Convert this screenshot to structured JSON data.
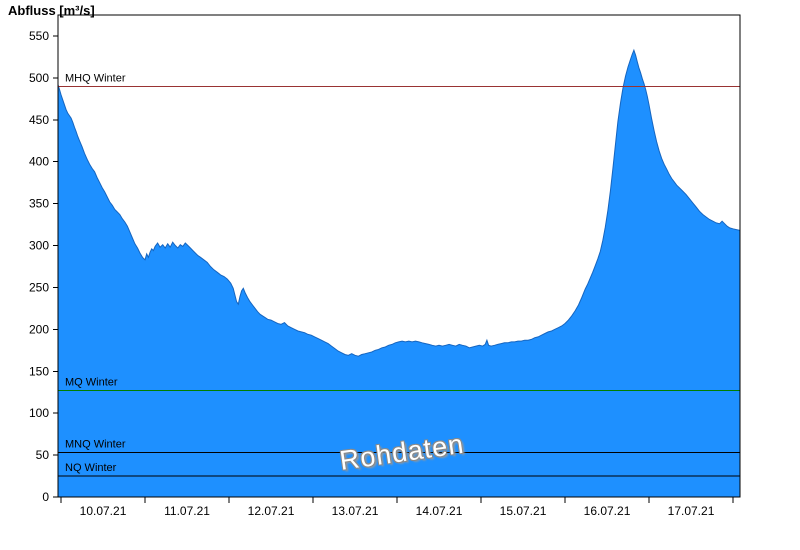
{
  "title": "Abfluss [m³/s]",
  "watermark": "Rohdaten",
  "chart_data": {
    "type": "area",
    "series_name": "Abfluss",
    "unit": "m³/s",
    "fill_color": "#1e90ff",
    "stroke_color": "#1565c0",
    "axis_color": "#000000",
    "x_unit": "day_of_july_2021",
    "x_range": [
      9.964,
      18.083
    ],
    "y_range": [
      0,
      575
    ],
    "y_ticks": [
      0,
      50,
      100,
      150,
      200,
      250,
      300,
      350,
      400,
      450,
      500,
      550
    ],
    "x_boundaries": [
      10,
      11,
      12,
      13,
      14,
      15,
      16,
      17,
      18
    ],
    "x_labels": [
      {
        "day": 10.5,
        "text": "10.07.21"
      },
      {
        "day": 11.5,
        "text": "11.07.21"
      },
      {
        "day": 12.5,
        "text": "12.07.21"
      },
      {
        "day": 13.5,
        "text": "13.07.21"
      },
      {
        "day": 14.5,
        "text": "14.07.21"
      },
      {
        "day": 15.5,
        "text": "15.07.21"
      },
      {
        "day": 16.5,
        "text": "16.07.21"
      },
      {
        "day": 17.5,
        "text": "17.07.21"
      }
    ],
    "reference_lines": [
      {
        "label": "MHQ Winter",
        "value": 490,
        "color": "#993333"
      },
      {
        "label": "MQ Winter",
        "value": 127,
        "color": "#007f00"
      },
      {
        "label": "MNQ Winter",
        "value": 53,
        "color": "#000000"
      },
      {
        "label": "NQ Winter",
        "value": 25,
        "color": "#000000"
      }
    ],
    "points": [
      [
        9.964,
        492
      ],
      [
        9.98,
        487
      ],
      [
        10.0,
        480
      ],
      [
        10.02,
        474
      ],
      [
        10.04,
        468
      ],
      [
        10.06,
        462
      ],
      [
        10.08,
        458
      ],
      [
        10.1,
        455
      ],
      [
        10.12,
        452
      ],
      [
        10.14,
        447
      ],
      [
        10.16,
        441
      ],
      [
        10.18,
        436
      ],
      [
        10.2,
        430
      ],
      [
        10.22,
        425
      ],
      [
        10.25,
        418
      ],
      [
        10.28,
        410
      ],
      [
        10.31,
        403
      ],
      [
        10.34,
        397
      ],
      [
        10.37,
        392
      ],
      [
        10.4,
        388
      ],
      [
        10.43,
        381
      ],
      [
        10.46,
        375
      ],
      [
        10.49,
        369
      ],
      [
        10.52,
        364
      ],
      [
        10.55,
        358
      ],
      [
        10.58,
        352
      ],
      [
        10.61,
        348
      ],
      [
        10.64,
        343
      ],
      [
        10.67,
        340
      ],
      [
        10.7,
        337
      ],
      [
        10.73,
        332
      ],
      [
        10.76,
        328
      ],
      [
        10.79,
        323
      ],
      [
        10.82,
        316
      ],
      [
        10.85,
        309
      ],
      [
        10.88,
        302
      ],
      [
        10.91,
        297
      ],
      [
        10.94,
        291
      ],
      [
        10.97,
        286
      ],
      [
        11.0,
        283
      ],
      [
        11.02,
        290
      ],
      [
        11.04,
        286
      ],
      [
        11.06,
        292
      ],
      [
        11.08,
        296
      ],
      [
        11.1,
        294
      ],
      [
        11.12,
        299
      ],
      [
        11.15,
        303
      ],
      [
        11.18,
        298
      ],
      [
        11.21,
        301
      ],
      [
        11.24,
        297
      ],
      [
        11.27,
        302
      ],
      [
        11.3,
        298
      ],
      [
        11.33,
        304
      ],
      [
        11.36,
        300
      ],
      [
        11.39,
        297
      ],
      [
        11.42,
        301
      ],
      [
        11.45,
        299
      ],
      [
        11.48,
        303
      ],
      [
        11.51,
        300
      ],
      [
        11.54,
        297
      ],
      [
        11.57,
        294
      ],
      [
        11.6,
        291
      ],
      [
        11.63,
        288
      ],
      [
        11.66,
        286
      ],
      [
        11.7,
        283
      ],
      [
        11.74,
        280
      ],
      [
        11.78,
        275
      ],
      [
        11.82,
        271
      ],
      [
        11.86,
        268
      ],
      [
        11.9,
        265
      ],
      [
        11.94,
        263
      ],
      [
        11.98,
        260
      ],
      [
        12.02,
        255
      ],
      [
        12.05,
        249
      ],
      [
        12.07,
        241
      ],
      [
        12.09,
        233
      ],
      [
        12.11,
        230
      ],
      [
        12.13,
        239
      ],
      [
        12.15,
        246
      ],
      [
        12.17,
        249
      ],
      [
        12.19,
        244
      ],
      [
        12.22,
        238
      ],
      [
        12.25,
        233
      ],
      [
        12.28,
        229
      ],
      [
        12.31,
        225
      ],
      [
        12.34,
        221
      ],
      [
        12.37,
        218
      ],
      [
        12.4,
        216
      ],
      [
        12.43,
        214
      ],
      [
        12.46,
        212
      ],
      [
        12.5,
        211
      ],
      [
        12.54,
        209
      ],
      [
        12.58,
        207
      ],
      [
        12.62,
        206
      ],
      [
        12.66,
        208
      ],
      [
        12.7,
        204
      ],
      [
        12.74,
        202
      ],
      [
        12.78,
        200
      ],
      [
        12.82,
        198
      ],
      [
        12.86,
        197
      ],
      [
        12.9,
        196
      ],
      [
        12.94,
        194
      ],
      [
        12.98,
        193
      ],
      [
        13.02,
        191
      ],
      [
        13.06,
        189
      ],
      [
        13.1,
        187
      ],
      [
        13.14,
        185
      ],
      [
        13.18,
        183
      ],
      [
        13.22,
        180
      ],
      [
        13.26,
        177
      ],
      [
        13.3,
        174
      ],
      [
        13.34,
        172
      ],
      [
        13.38,
        170
      ],
      [
        13.42,
        169
      ],
      [
        13.46,
        171
      ],
      [
        13.5,
        169
      ],
      [
        13.54,
        168
      ],
      [
        13.58,
        170
      ],
      [
        13.62,
        171
      ],
      [
        13.66,
        172
      ],
      [
        13.7,
        173
      ],
      [
        13.74,
        175
      ],
      [
        13.78,
        176
      ],
      [
        13.82,
        178
      ],
      [
        13.86,
        179
      ],
      [
        13.9,
        181
      ],
      [
        13.94,
        182
      ],
      [
        13.98,
        184
      ],
      [
        14.02,
        185
      ],
      [
        14.06,
        186
      ],
      [
        14.1,
        185
      ],
      [
        14.14,
        186
      ],
      [
        14.18,
        185
      ],
      [
        14.22,
        186
      ],
      [
        14.26,
        185
      ],
      [
        14.3,
        184
      ],
      [
        14.34,
        183
      ],
      [
        14.38,
        182
      ],
      [
        14.42,
        181
      ],
      [
        14.46,
        180
      ],
      [
        14.5,
        181
      ],
      [
        14.54,
        180
      ],
      [
        14.58,
        181
      ],
      [
        14.62,
        182
      ],
      [
        14.66,
        181
      ],
      [
        14.7,
        180
      ],
      [
        14.74,
        182
      ],
      [
        14.78,
        181
      ],
      [
        14.82,
        180
      ],
      [
        14.86,
        178
      ],
      [
        14.9,
        179
      ],
      [
        14.94,
        180
      ],
      [
        14.98,
        181
      ],
      [
        15.02,
        180
      ],
      [
        15.05,
        182
      ],
      [
        15.07,
        187
      ],
      [
        15.09,
        181
      ],
      [
        15.12,
        180
      ],
      [
        15.16,
        181
      ],
      [
        15.2,
        182
      ],
      [
        15.24,
        183
      ],
      [
        15.28,
        184
      ],
      [
        15.32,
        184
      ],
      [
        15.36,
        185
      ],
      [
        15.4,
        185
      ],
      [
        15.44,
        186
      ],
      [
        15.48,
        186
      ],
      [
        15.52,
        187
      ],
      [
        15.56,
        187
      ],
      [
        15.6,
        188
      ],
      [
        15.64,
        190
      ],
      [
        15.68,
        191
      ],
      [
        15.72,
        193
      ],
      [
        15.76,
        195
      ],
      [
        15.8,
        197
      ],
      [
        15.84,
        198
      ],
      [
        15.88,
        200
      ],
      [
        15.92,
        202
      ],
      [
        15.96,
        204
      ],
      [
        16.0,
        207
      ],
      [
        16.04,
        211
      ],
      [
        16.08,
        216
      ],
      [
        16.12,
        222
      ],
      [
        16.16,
        229
      ],
      [
        16.2,
        238
      ],
      [
        16.24,
        248
      ],
      [
        16.27,
        254
      ],
      [
        16.3,
        261
      ],
      [
        16.33,
        268
      ],
      [
        16.36,
        276
      ],
      [
        16.39,
        284
      ],
      [
        16.42,
        293
      ],
      [
        16.45,
        306
      ],
      [
        16.48,
        322
      ],
      [
        16.51,
        342
      ],
      [
        16.54,
        365
      ],
      [
        16.57,
        392
      ],
      [
        16.6,
        420
      ],
      [
        16.63,
        448
      ],
      [
        16.66,
        470
      ],
      [
        16.69,
        488
      ],
      [
        16.72,
        502
      ],
      [
        16.75,
        513
      ],
      [
        16.78,
        522
      ],
      [
        16.8,
        528
      ],
      [
        16.82,
        533
      ],
      [
        16.84,
        527
      ],
      [
        16.86,
        519
      ],
      [
        16.88,
        512
      ],
      [
        16.9,
        506
      ],
      [
        16.92,
        499
      ],
      [
        16.94,
        493
      ],
      [
        16.96,
        486
      ],
      [
        16.98,
        478
      ],
      [
        17.0,
        468
      ],
      [
        17.03,
        452
      ],
      [
        17.06,
        437
      ],
      [
        17.09,
        424
      ],
      [
        17.12,
        413
      ],
      [
        17.15,
        404
      ],
      [
        17.18,
        397
      ],
      [
        17.21,
        391
      ],
      [
        17.24,
        385
      ],
      [
        17.27,
        380
      ],
      [
        17.3,
        376
      ],
      [
        17.33,
        372
      ],
      [
        17.36,
        369
      ],
      [
        17.4,
        365
      ],
      [
        17.44,
        361
      ],
      [
        17.48,
        356
      ],
      [
        17.52,
        351
      ],
      [
        17.56,
        346
      ],
      [
        17.6,
        341
      ],
      [
        17.64,
        337
      ],
      [
        17.68,
        334
      ],
      [
        17.72,
        331
      ],
      [
        17.76,
        329
      ],
      [
        17.8,
        327
      ],
      [
        17.84,
        326
      ],
      [
        17.87,
        329
      ],
      [
        17.9,
        326
      ],
      [
        17.93,
        323
      ],
      [
        17.96,
        321
      ],
      [
        18.0,
        320
      ],
      [
        18.04,
        319
      ],
      [
        18.083,
        318
      ]
    ]
  }
}
